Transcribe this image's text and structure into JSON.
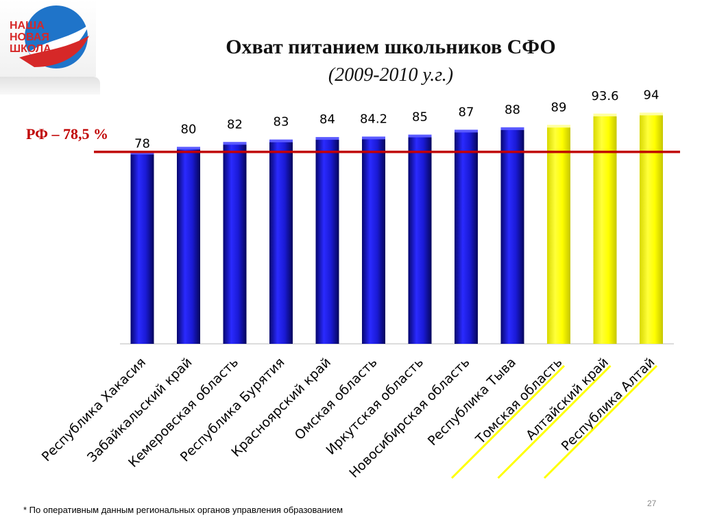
{
  "logo": {
    "lines": [
      "НАША",
      "НОВАЯ",
      "ШКОЛА"
    ]
  },
  "reference": {
    "label": "РФ – 78,5 %",
    "value": 78.5
  },
  "footnote": "* По оперативным данным региональных органов управления образованием",
  "page_number": "27",
  "colors": {
    "blue_bar": "#1a1ad6",
    "yellow_bar": "#ffff00",
    "reference_line": "#c00000",
    "highlight_underline": "#ffff00"
  },
  "chart_data": {
    "type": "bar",
    "title": "Охват питанием школьников СФО",
    "subtitle": "(2009-2010 у.г.)",
    "categories": [
      "Республика Хакасия",
      "Забайкальский край",
      "Кемеровская область",
      "Республика Бурятия",
      "Красноярский край",
      "Омская область",
      "Иркутская область",
      "Новосибирская область",
      "Республика Тыва",
      "Томская область",
      "Алтайский край",
      "Республика Алтай"
    ],
    "values": [
      78,
      80,
      82,
      83,
      84,
      84.2,
      85,
      87,
      88,
      89,
      93.6,
      94
    ],
    "labels": [
      "78",
      "80",
      "82",
      "83",
      "84",
      "84.2",
      "85",
      "87",
      "88",
      "89",
      "93.6",
      "94"
    ],
    "highlighted": [
      false,
      false,
      false,
      false,
      false,
      false,
      false,
      false,
      false,
      true,
      true,
      true
    ],
    "reference_line": 78.5,
    "grid": false,
    "legend": "none"
  }
}
